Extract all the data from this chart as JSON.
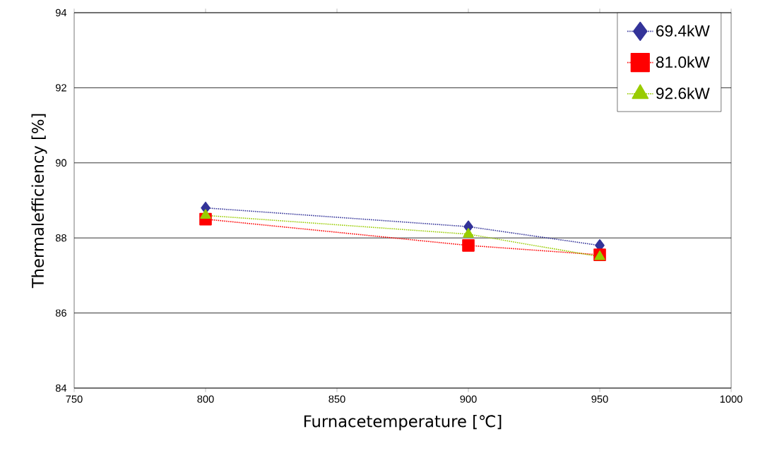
{
  "chart_data": {
    "type": "line",
    "xlabel": "Furnacetemperature  [℃]",
    "ylabel": "Thermalefficiency  [%]",
    "x": [
      800,
      900,
      950
    ],
    "series": [
      {
        "name": "69.4kW",
        "color": "#333399",
        "marker": "diamond",
        "values": [
          88.8,
          88.3,
          87.8
        ]
      },
      {
        "name": "81.0kW",
        "color": "#ff0000",
        "marker": "square",
        "values": [
          88.5,
          87.8,
          87.55
        ]
      },
      {
        "name": "92.6kW",
        "color": "#99cc00",
        "marker": "triangle",
        "values": [
          88.6,
          88.1,
          87.5
        ]
      }
    ],
    "xlim": [
      750,
      1000
    ],
    "xticks": [
      750,
      800,
      850,
      900,
      950,
      1000
    ],
    "ylim": [
      84,
      94
    ],
    "yticks": [
      84,
      86,
      88,
      90,
      92,
      94
    ],
    "grid": "y",
    "legend": "top right",
    "line_style": "dotted"
  }
}
